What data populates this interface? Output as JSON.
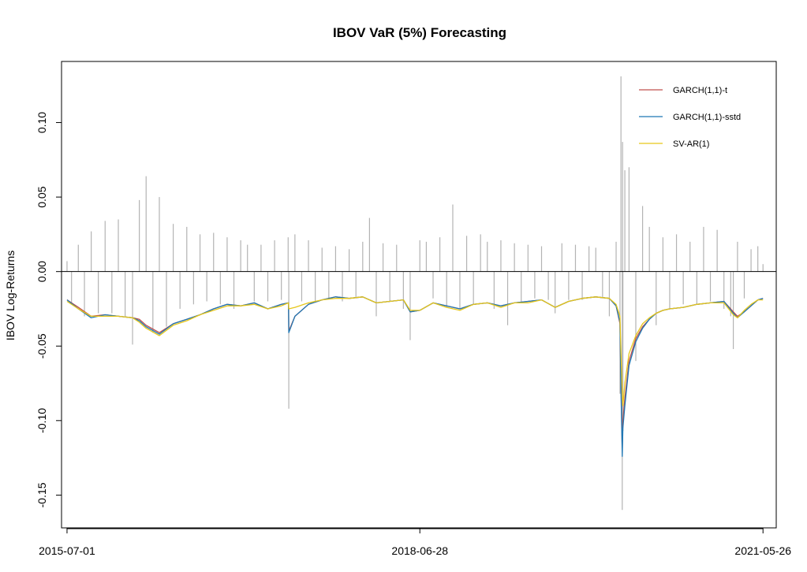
{
  "chart_data": {
    "type": "line",
    "title": "IBOV VaR (5%) Forecasting",
    "xlabel": "",
    "ylabel": "IBOV Log-Returns",
    "x_tick_labels": [
      "2015-07-01",
      "2018-06-28",
      "2021-05-26"
    ],
    "y_ticks": [
      0.1,
      0.05,
      0.0,
      -0.05,
      -0.1,
      -0.15
    ],
    "y_tick_labels": [
      "0.10",
      "0.05",
      "0.00",
      "-0.05",
      "-0.10",
      "-0.15"
    ],
    "xlim": [
      "2015-06-14",
      "2021-07-06"
    ],
    "ylim": [
      -0.172,
      0.141
    ],
    "grid": false,
    "reference_line": 0,
    "legend_position": "top-right",
    "series": [
      {
        "name": "IBOV Log-Returns",
        "style": "spikes",
        "color": "#b3b3b3",
        "in_legend": false,
        "x": [
          "2015-07-01",
          "2015-07-15",
          "2015-08-05",
          "2015-08-24",
          "2015-09-14",
          "2015-10-06",
          "2015-10-27",
          "2015-11-17",
          "2015-12-07",
          "2015-12-28",
          "2016-01-20",
          "2016-02-10",
          "2016-03-02",
          "2016-03-23",
          "2016-04-12",
          "2016-05-04",
          "2016-05-25",
          "2016-06-15",
          "2016-07-06",
          "2016-07-27",
          "2016-08-16",
          "2016-09-06",
          "2016-09-27",
          "2016-10-18",
          "2016-11-08",
          "2016-11-29",
          "2016-12-20",
          "2017-01-10",
          "2017-01-31",
          "2017-02-21",
          "2017-03-14",
          "2017-04-04",
          "2017-04-25",
          "2017-05-16",
          "2017-05-18",
          "2017-06-06",
          "2017-06-27",
          "2017-07-18",
          "2017-08-08",
          "2017-08-29",
          "2017-09-19",
          "2017-10-10",
          "2017-10-31",
          "2017-11-21",
          "2017-12-12",
          "2018-01-02",
          "2018-01-23",
          "2018-02-13",
          "2018-03-06",
          "2018-03-27",
          "2018-04-17",
          "2018-05-08",
          "2018-05-29",
          "2018-06-28",
          "2018-07-18",
          "2018-08-08",
          "2018-08-29",
          "2018-09-19",
          "2018-10-08",
          "2018-10-30",
          "2018-11-20",
          "2018-12-11",
          "2019-01-02",
          "2019-01-23",
          "2019-02-13",
          "2019-03-06",
          "2019-03-27",
          "2019-04-17",
          "2019-05-08",
          "2019-05-29",
          "2019-06-19",
          "2019-07-10",
          "2019-07-31",
          "2019-08-21",
          "2019-09-11",
          "2019-10-02",
          "2019-10-23",
          "2019-11-13",
          "2019-12-04",
          "2019-12-25",
          "2020-01-15",
          "2020-02-05",
          "2020-02-26",
          "2020-03-09",
          "2020-03-12",
          "2020-03-16",
          "2020-03-17",
          "2020-03-18",
          "2020-03-24",
          "2020-04-06",
          "2020-04-27",
          "2020-05-18",
          "2020-06-08",
          "2020-06-29",
          "2020-07-20",
          "2020-08-10",
          "2020-08-31",
          "2020-09-21",
          "2020-10-12",
          "2020-11-02",
          "2020-11-23",
          "2020-12-14",
          "2021-01-04",
          "2021-01-25",
          "2021-02-15",
          "2021-02-23",
          "2021-03-08",
          "2021-03-29",
          "2021-04-19",
          "2021-05-10",
          "2021-05-26"
        ],
        "y": [
          0.007,
          -0.022,
          0.018,
          -0.03,
          0.027,
          -0.028,
          0.034,
          -0.028,
          0.035,
          -0.03,
          -0.049,
          0.048,
          0.064,
          -0.041,
          0.05,
          -0.037,
          0.032,
          -0.025,
          0.03,
          -0.022,
          0.025,
          -0.02,
          0.026,
          -0.022,
          0.023,
          -0.025,
          0.021,
          0.018,
          -0.02,
          0.018,
          -0.02,
          0.021,
          -0.019,
          0.023,
          -0.092,
          0.025,
          -0.02,
          0.021,
          -0.02,
          0.016,
          -0.018,
          0.017,
          -0.02,
          0.015,
          -0.018,
          0.02,
          0.036,
          -0.03,
          0.019,
          -0.02,
          0.018,
          -0.025,
          -0.046,
          0.021,
          0.02,
          -0.018,
          0.023,
          -0.024,
          0.045,
          -0.025,
          0.024,
          -0.022,
          0.025,
          0.02,
          -0.025,
          0.021,
          -0.036,
          0.019,
          -0.02,
          0.018,
          -0.018,
          0.017,
          -0.019,
          -0.028,
          0.019,
          -0.019,
          0.018,
          -0.019,
          0.017,
          0.016,
          -0.018,
          -0.03,
          0.02,
          -0.082,
          0.131,
          -0.16,
          0.087,
          -0.107,
          0.068,
          0.07,
          -0.06,
          0.044,
          0.03,
          -0.036,
          0.023,
          -0.025,
          0.025,
          -0.022,
          0.02,
          -0.022,
          0.03,
          -0.02,
          0.028,
          -0.025,
          -0.03,
          -0.052,
          0.02,
          -0.018,
          0.015,
          0.017,
          0.005
        ]
      },
      {
        "name": "GARCH(1,1)-t",
        "style": "line",
        "color": "#c0504d",
        "in_legend": true,
        "x": [
          "2015-07-01",
          "2015-08-05",
          "2015-09-14",
          "2015-10-27",
          "2015-12-07",
          "2016-01-20",
          "2016-02-10",
          "2016-03-02",
          "2016-04-12",
          "2016-05-25",
          "2016-07-06",
          "2016-08-16",
          "2016-09-27",
          "2016-11-08",
          "2016-12-20",
          "2017-01-31",
          "2017-03-14",
          "2017-04-25",
          "2017-05-17",
          "2017-05-18",
          "2017-06-06",
          "2017-07-18",
          "2017-08-29",
          "2017-10-10",
          "2017-11-21",
          "2018-01-02",
          "2018-02-13",
          "2018-03-27",
          "2018-05-08",
          "2018-05-29",
          "2018-06-28",
          "2018-08-08",
          "2018-09-19",
          "2018-10-30",
          "2018-12-11",
          "2019-01-23",
          "2019-03-06",
          "2019-04-17",
          "2019-05-29",
          "2019-07-10",
          "2019-08-21",
          "2019-10-02",
          "2019-11-13",
          "2019-12-25",
          "2020-02-05",
          "2020-02-26",
          "2020-03-09",
          "2020-03-12",
          "2020-03-16",
          "2020-03-18",
          "2020-03-24",
          "2020-04-06",
          "2020-04-27",
          "2020-05-18",
          "2020-06-08",
          "2020-06-29",
          "2020-07-20",
          "2020-08-10",
          "2020-09-21",
          "2020-11-02",
          "2020-12-14",
          "2021-01-25",
          "2021-02-23",
          "2021-03-08",
          "2021-03-29",
          "2021-04-19",
          "2021-05-10",
          "2021-05-26"
        ],
        "y": [
          -0.019,
          -0.024,
          -0.03,
          -0.029,
          -0.03,
          -0.031,
          -0.032,
          -0.036,
          -0.041,
          -0.035,
          -0.032,
          -0.029,
          -0.025,
          -0.022,
          -0.023,
          -0.021,
          -0.025,
          -0.022,
          -0.021,
          -0.04,
          -0.03,
          -0.022,
          -0.019,
          -0.017,
          -0.018,
          -0.017,
          -0.021,
          -0.02,
          -0.019,
          -0.027,
          -0.026,
          -0.021,
          -0.023,
          -0.025,
          -0.022,
          -0.021,
          -0.023,
          -0.021,
          -0.02,
          -0.019,
          -0.024,
          -0.02,
          -0.018,
          -0.017,
          -0.018,
          -0.023,
          -0.035,
          -0.075,
          -0.12,
          -0.1,
          -0.085,
          -0.06,
          -0.045,
          -0.037,
          -0.032,
          -0.028,
          -0.026,
          -0.025,
          -0.024,
          -0.022,
          -0.021,
          -0.02,
          -0.027,
          -0.03,
          -0.027,
          -0.023,
          -0.019,
          -0.018
        ]
      },
      {
        "name": "GARCH(1,1)-sstd",
        "style": "line",
        "color": "#1f77b4",
        "in_legend": true,
        "x": [
          "2015-07-01",
          "2015-08-05",
          "2015-09-14",
          "2015-10-27",
          "2015-12-07",
          "2016-01-20",
          "2016-02-10",
          "2016-03-02",
          "2016-04-12",
          "2016-05-25",
          "2016-07-06",
          "2016-08-16",
          "2016-09-27",
          "2016-11-08",
          "2016-12-20",
          "2017-01-31",
          "2017-03-14",
          "2017-04-25",
          "2017-05-17",
          "2017-05-18",
          "2017-06-06",
          "2017-07-18",
          "2017-08-29",
          "2017-10-10",
          "2017-11-21",
          "2018-01-02",
          "2018-02-13",
          "2018-03-27",
          "2018-05-08",
          "2018-05-29",
          "2018-06-28",
          "2018-08-08",
          "2018-09-19",
          "2018-10-30",
          "2018-12-11",
          "2019-01-23",
          "2019-03-06",
          "2019-04-17",
          "2019-05-29",
          "2019-07-10",
          "2019-08-21",
          "2019-10-02",
          "2019-11-13",
          "2019-12-25",
          "2020-02-05",
          "2020-02-26",
          "2020-03-09",
          "2020-03-12",
          "2020-03-16",
          "2020-03-18",
          "2020-03-24",
          "2020-04-06",
          "2020-04-27",
          "2020-05-18",
          "2020-06-08",
          "2020-06-29",
          "2020-07-20",
          "2020-08-10",
          "2020-09-21",
          "2020-11-02",
          "2020-12-14",
          "2021-01-25",
          "2021-02-23",
          "2021-03-08",
          "2021-03-29",
          "2021-04-19",
          "2021-05-10",
          "2021-05-26"
        ],
        "y": [
          -0.019,
          -0.025,
          -0.031,
          -0.029,
          -0.03,
          -0.031,
          -0.033,
          -0.037,
          -0.042,
          -0.035,
          -0.032,
          -0.029,
          -0.025,
          -0.022,
          -0.023,
          -0.021,
          -0.025,
          -0.022,
          -0.021,
          -0.041,
          -0.03,
          -0.022,
          -0.019,
          -0.017,
          -0.018,
          -0.017,
          -0.021,
          -0.02,
          -0.019,
          -0.027,
          -0.026,
          -0.021,
          -0.023,
          -0.025,
          -0.022,
          -0.021,
          -0.023,
          -0.021,
          -0.02,
          -0.019,
          -0.024,
          -0.02,
          -0.018,
          -0.017,
          -0.018,
          -0.023,
          -0.034,
          -0.08,
          -0.124,
          -0.105,
          -0.09,
          -0.063,
          -0.047,
          -0.038,
          -0.032,
          -0.028,
          -0.026,
          -0.025,
          -0.024,
          -0.022,
          -0.021,
          -0.02,
          -0.028,
          -0.031,
          -0.027,
          -0.023,
          -0.019,
          -0.018
        ]
      },
      {
        "name": "SV-AR(1)",
        "style": "line",
        "color": "#e6c619",
        "in_legend": true,
        "x": [
          "2015-07-01",
          "2015-08-05",
          "2015-09-14",
          "2015-10-27",
          "2015-12-07",
          "2016-01-20",
          "2016-02-10",
          "2016-03-02",
          "2016-04-12",
          "2016-05-25",
          "2016-07-06",
          "2016-08-16",
          "2016-09-27",
          "2016-11-08",
          "2016-12-20",
          "2017-01-31",
          "2017-03-14",
          "2017-04-25",
          "2017-05-17",
          "2017-05-18",
          "2017-06-06",
          "2017-07-18",
          "2017-08-29",
          "2017-10-10",
          "2017-11-21",
          "2018-01-02",
          "2018-02-13",
          "2018-03-27",
          "2018-05-08",
          "2018-05-29",
          "2018-06-28",
          "2018-08-08",
          "2018-09-19",
          "2018-10-30",
          "2018-12-11",
          "2019-01-23",
          "2019-03-06",
          "2019-04-17",
          "2019-05-29",
          "2019-07-10",
          "2019-08-21",
          "2019-10-02",
          "2019-11-13",
          "2019-12-25",
          "2020-02-05",
          "2020-02-26",
          "2020-03-09",
          "2020-03-12",
          "2020-03-16",
          "2020-03-18",
          "2020-03-24",
          "2020-04-06",
          "2020-04-27",
          "2020-05-18",
          "2020-06-08",
          "2020-06-29",
          "2020-07-20",
          "2020-08-10",
          "2020-09-21",
          "2020-11-02",
          "2020-12-14",
          "2021-01-25",
          "2021-02-23",
          "2021-03-08",
          "2021-03-29",
          "2021-04-19",
          "2021-05-10",
          "2021-05-26"
        ],
        "y": [
          -0.02,
          -0.025,
          -0.03,
          -0.03,
          -0.03,
          -0.031,
          -0.034,
          -0.038,
          -0.043,
          -0.036,
          -0.033,
          -0.029,
          -0.026,
          -0.023,
          -0.023,
          -0.022,
          -0.025,
          -0.023,
          -0.021,
          -0.025,
          -0.024,
          -0.021,
          -0.019,
          -0.018,
          -0.018,
          -0.017,
          -0.021,
          -0.02,
          -0.019,
          -0.026,
          -0.026,
          -0.021,
          -0.024,
          -0.026,
          -0.022,
          -0.021,
          -0.024,
          -0.021,
          -0.021,
          -0.019,
          -0.024,
          -0.02,
          -0.018,
          -0.017,
          -0.018,
          -0.022,
          -0.03,
          -0.055,
          -0.08,
          -0.09,
          -0.075,
          -0.055,
          -0.043,
          -0.035,
          -0.031,
          -0.028,
          -0.026,
          -0.025,
          -0.024,
          -0.022,
          -0.021,
          -0.021,
          -0.029,
          -0.031,
          -0.026,
          -0.022,
          -0.019,
          -0.019
        ]
      }
    ]
  }
}
